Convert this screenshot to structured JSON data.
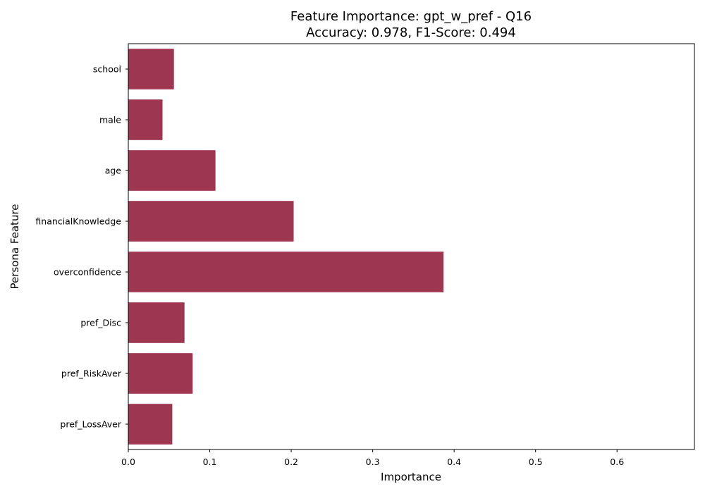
{
  "chart_data": {
    "type": "bar",
    "orientation": "horizontal",
    "title": [
      "Feature Importance: gpt_w_pref - Q16",
      "Accuracy: 0.978, F1-Score: 0.494"
    ],
    "xlabel": "Importance",
    "ylabel": "Persona Feature",
    "categories": [
      "school",
      "male",
      "age",
      "financialKnowledge",
      "overconfidence",
      "pref_Disc",
      "pref_RiskAver",
      "pref_LossAver"
    ],
    "values": [
      0.056,
      0.042,
      0.107,
      0.203,
      0.387,
      0.069,
      0.079,
      0.054
    ],
    "xlim": [
      0,
      0.695
    ],
    "xticks": [
      "0.0",
      "0.1",
      "0.2",
      "0.3",
      "0.4",
      "0.5",
      "0.6"
    ],
    "xtick_values": [
      0,
      0.1,
      0.2,
      0.3,
      0.4,
      0.5,
      0.6
    ],
    "bar_color": "#9c3651",
    "grid": false,
    "legend": "none"
  }
}
